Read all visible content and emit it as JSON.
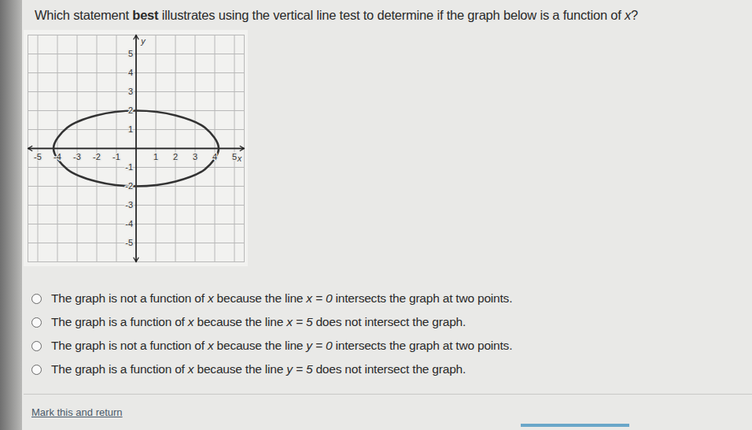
{
  "question": [
    {
      "text": "Which statement "
    },
    {
      "text": "best",
      "style": "bold"
    },
    {
      "text": " illustrates using the vertical line test to determine if the graph below is a function of "
    },
    {
      "text": "x",
      "style": "italic"
    },
    {
      "text": "?"
    }
  ],
  "chart_data": {
    "type": "ellipse",
    "x_label": "x",
    "y_label": "y",
    "x": [
      -4.2,
      -3.5,
      -2,
      0,
      2,
      3.5,
      4.2,
      3.5,
      2,
      0,
      -2,
      -3.5
    ],
    "values": [
      0,
      1.1,
      1.75,
      2,
      1.75,
      1.1,
      0,
      -1.1,
      -1.75,
      -2,
      -1.75,
      -1.1
    ],
    "color": "#333333",
    "xlim": [
      -5.5,
      5.5
    ],
    "ylim": [
      -6,
      6
    ],
    "xticks": [
      -5,
      -4,
      -3,
      -2,
      -1,
      1,
      2,
      3,
      4,
      5
    ],
    "yticks": [
      -5,
      -4,
      -3,
      -2,
      -1,
      1,
      2,
      3,
      4,
      5
    ],
    "grid": true
  },
  "options": [
    [
      {
        "text": "The graph is not a function of "
      },
      {
        "text": "x",
        "style": "italic"
      },
      {
        "text": " because the line "
      },
      {
        "text": "x = 0",
        "style": "italic"
      },
      {
        "text": " intersects the graph at two points."
      }
    ],
    [
      {
        "text": "The graph is a function of "
      },
      {
        "text": "x",
        "style": "italic"
      },
      {
        "text": " because the line "
      },
      {
        "text": "x = 5",
        "style": "italic"
      },
      {
        "text": " does not intersect the graph."
      }
    ],
    [
      {
        "text": "The graph is not a function of "
      },
      {
        "text": "x",
        "style": "italic"
      },
      {
        "text": " because the line "
      },
      {
        "text": "y = 0",
        "style": "italic"
      },
      {
        "text": " intersects the graph at two points."
      }
    ],
    [
      {
        "text": "The graph is a function of "
      },
      {
        "text": "x",
        "style": "italic"
      },
      {
        "text": " because the line "
      },
      {
        "text": "y = 5",
        "style": "italic"
      },
      {
        "text": " does not intersect the graph."
      }
    ]
  ],
  "footer": "Mark this and return"
}
